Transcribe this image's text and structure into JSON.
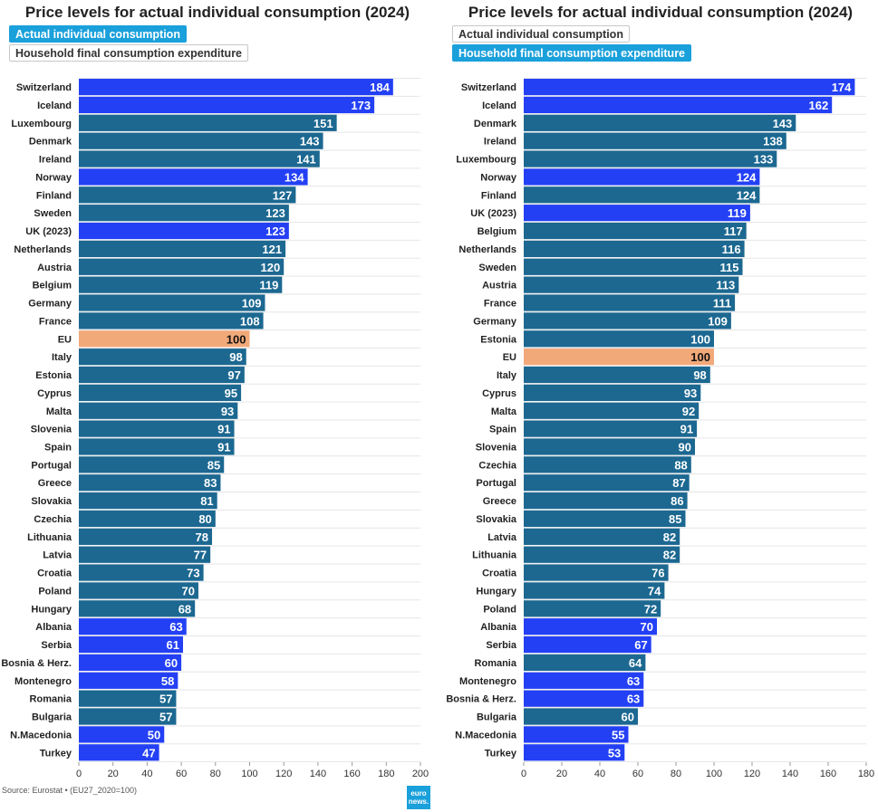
{
  "source": "Source: Eurostat • (EU27_2020=100)",
  "logo_text": "euro news.",
  "colors": {
    "non_eu": "#2340f5",
    "eu_member": "#1c6891",
    "eu_average": "#f2a97a",
    "toggle_active": "#1aa0db"
  },
  "panels": [
    {
      "title": "Price levels for actual individual consumption (2024)",
      "toggles": [
        {
          "label": "Actual individual consumption",
          "active": true
        },
        {
          "label": "Household final consumption expenditure",
          "active": false
        }
      ]
    },
    {
      "title": "Price levels for actual individual consumption (2024)",
      "toggles": [
        {
          "label": "Actual individual consumption",
          "active": false
        },
        {
          "label": "Household final consumption expenditure",
          "active": true
        }
      ]
    }
  ],
  "chart_data": [
    {
      "type": "bar",
      "orientation": "horizontal",
      "title": "Price levels for actual individual consumption (2024)",
      "xlim": [
        0,
        200
      ],
      "xticks": [
        0,
        20,
        40,
        60,
        80,
        100,
        120,
        140,
        160,
        180,
        200
      ],
      "grid": true,
      "categories": [
        "Switzerland",
        "Iceland",
        "Luxembourg",
        "Denmark",
        "Ireland",
        "Norway",
        "Finland",
        "Sweden",
        "UK (2023)",
        "Netherlands",
        "Austria",
        "Belgium",
        "Germany",
        "France",
        "EU",
        "Italy",
        "Estonia",
        "Cyprus",
        "Malta",
        "Slovenia",
        "Spain",
        "Portugal",
        "Greece",
        "Slovakia",
        "Czechia",
        "Lithuania",
        "Latvia",
        "Croatia",
        "Poland",
        "Hungary",
        "Albania",
        "Serbia",
        "Bosnia & Herz.",
        "Montenegro",
        "Romania",
        "Bulgaria",
        "N.Macedonia",
        "Turkey"
      ],
      "values": [
        184,
        173,
        151,
        143,
        141,
        134,
        127,
        123,
        123,
        121,
        120,
        119,
        109,
        108,
        100,
        98,
        97,
        95,
        93,
        91,
        91,
        85,
        83,
        81,
        80,
        78,
        77,
        73,
        70,
        68,
        63,
        61,
        60,
        58,
        57,
        57,
        50,
        47
      ],
      "groups": [
        "non_eu",
        "non_eu",
        "eu_member",
        "eu_member",
        "eu_member",
        "non_eu",
        "eu_member",
        "eu_member",
        "non_eu",
        "eu_member",
        "eu_member",
        "eu_member",
        "eu_member",
        "eu_member",
        "eu_average",
        "eu_member",
        "eu_member",
        "eu_member",
        "eu_member",
        "eu_member",
        "eu_member",
        "eu_member",
        "eu_member",
        "eu_member",
        "eu_member",
        "eu_member",
        "eu_member",
        "eu_member",
        "eu_member",
        "eu_member",
        "non_eu",
        "non_eu",
        "non_eu",
        "non_eu",
        "eu_member",
        "eu_member",
        "non_eu",
        "non_eu"
      ]
    },
    {
      "type": "bar",
      "orientation": "horizontal",
      "title": "Price levels for actual individual consumption (2024)",
      "xlim": [
        0,
        180
      ],
      "xticks": [
        0,
        20,
        40,
        60,
        80,
        100,
        120,
        140,
        160,
        180
      ],
      "grid": true,
      "categories": [
        "Switzerland",
        "Iceland",
        "Denmark",
        "Ireland",
        "Luxembourg",
        "Norway",
        "Finland",
        "UK (2023)",
        "Belgium",
        "Netherlands",
        "Sweden",
        "Austria",
        "France",
        "Germany",
        "Estonia",
        "EU",
        "Italy",
        "Cyprus",
        "Malta",
        "Spain",
        "Slovenia",
        "Czechia",
        "Portugal",
        "Greece",
        "Slovakia",
        "Latvia",
        "Lithuania",
        "Croatia",
        "Hungary",
        "Poland",
        "Albania",
        "Serbia",
        "Romania",
        "Montenegro",
        "Bosnia & Herz.",
        "Bulgaria",
        "N.Macedonia",
        "Turkey"
      ],
      "values": [
        174,
        162,
        143,
        138,
        133,
        124,
        124,
        119,
        117,
        116,
        115,
        113,
        111,
        109,
        100,
        100,
        98,
        93,
        92,
        91,
        90,
        88,
        87,
        86,
        85,
        82,
        82,
        76,
        74,
        72,
        70,
        67,
        64,
        63,
        63,
        60,
        55,
        53
      ],
      "groups": [
        "non_eu",
        "non_eu",
        "eu_member",
        "eu_member",
        "eu_member",
        "non_eu",
        "eu_member",
        "non_eu",
        "eu_member",
        "eu_member",
        "eu_member",
        "eu_member",
        "eu_member",
        "eu_member",
        "eu_member",
        "eu_average",
        "eu_member",
        "eu_member",
        "eu_member",
        "eu_member",
        "eu_member",
        "eu_member",
        "eu_member",
        "eu_member",
        "eu_member",
        "eu_member",
        "eu_member",
        "eu_member",
        "eu_member",
        "eu_member",
        "non_eu",
        "non_eu",
        "eu_member",
        "non_eu",
        "non_eu",
        "eu_member",
        "non_eu",
        "non_eu"
      ]
    }
  ]
}
